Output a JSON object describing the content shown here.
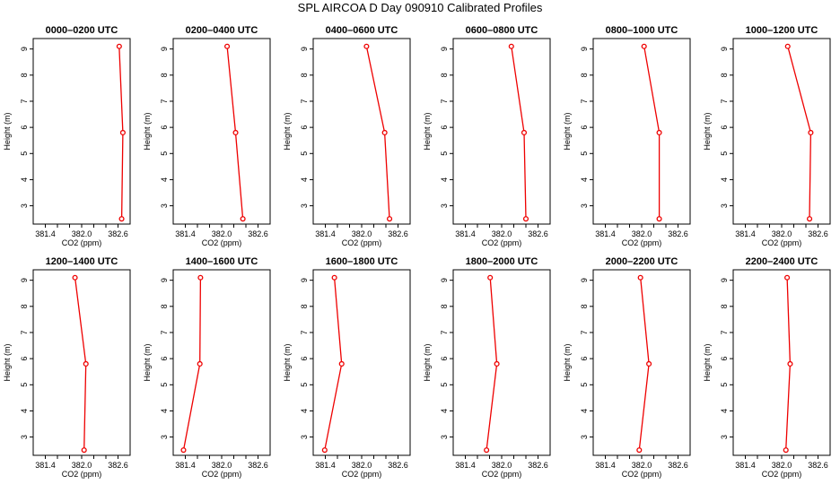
{
  "figure_title": "SPL AIRCOA D  Day 090910  Calibrated Profiles",
  "colors": {
    "series": "#ee0000",
    "axis": "#000000"
  },
  "chart_data": {
    "type": "line",
    "xlabel": "CO2 (ppm)",
    "ylabel": "Height (m)",
    "xlim": [
      381.2,
      382.8
    ],
    "ylim": [
      2.3,
      9.4
    ],
    "xticks": [
      381.4,
      381.6,
      381.8,
      382.0,
      382.2,
      382.4,
      382.6
    ],
    "xtick_labels": [
      "381.4",
      "",
      "",
      "382.0",
      "",
      "",
      "382.6"
    ],
    "yticks": [
      3,
      4,
      5,
      6,
      7,
      8,
      9
    ],
    "ytick_labels": [
      "3",
      "4",
      "5",
      "6",
      "7",
      "8",
      "9"
    ],
    "heights": [
      9.1,
      5.8,
      2.5
    ],
    "panels": [
      {
        "title": "0000–0200 UTC",
        "co2": [
          382.62,
          382.68,
          382.66
        ]
      },
      {
        "title": "0200–0400 UTC",
        "co2": [
          382.09,
          382.23,
          382.35
        ]
      },
      {
        "title": "0400–0600 UTC",
        "co2": [
          382.08,
          382.38,
          382.46
        ]
      },
      {
        "title": "0600–0800 UTC",
        "co2": [
          382.16,
          382.37,
          382.4
        ]
      },
      {
        "title": "0800–1000 UTC",
        "co2": [
          382.04,
          382.29,
          382.29
        ]
      },
      {
        "title": "1000–1200 UTC",
        "co2": [
          382.1,
          382.48,
          382.46
        ]
      },
      {
        "title": "1200–1400 UTC",
        "co2": [
          381.89,
          382.07,
          382.04
        ]
      },
      {
        "title": "1400–1600 UTC",
        "co2": [
          381.65,
          381.64,
          381.37
        ]
      },
      {
        "title": "1600–1800 UTC",
        "co2": [
          381.55,
          381.67,
          381.39
        ]
      },
      {
        "title": "1800–2000 UTC",
        "co2": [
          381.81,
          381.92,
          381.75
        ]
      },
      {
        "title": "2000–2200 UTC",
        "co2": [
          381.98,
          382.12,
          381.96
        ]
      },
      {
        "title": "2200–2400 UTC",
        "co2": [
          382.09,
          382.14,
          382.07
        ]
      }
    ]
  }
}
